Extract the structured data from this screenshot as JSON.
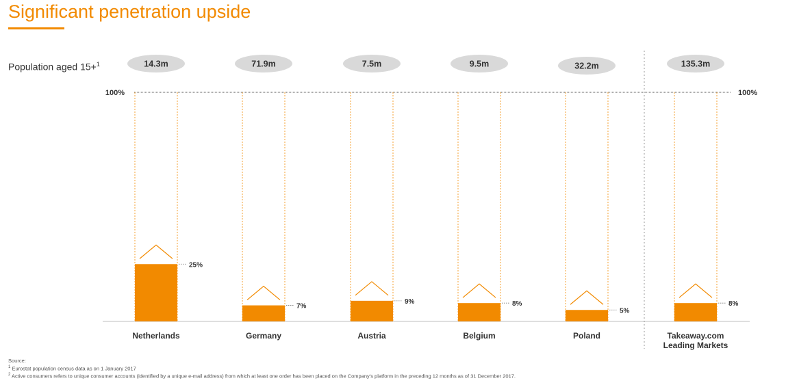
{
  "title": "Significant penetration upside",
  "population_label": "Population aged 15+",
  "population_label_sup": "1",
  "colors": {
    "accent": "#F28A00",
    "pill": "#D9D9D9",
    "axis": "#BFBFBF",
    "text": "#333333"
  },
  "chart_data": {
    "type": "bar",
    "categories": [
      "Netherlands",
      "Germany",
      "Austria",
      "Belgium",
      "Poland",
      "Takeaway.com Leading Markets"
    ],
    "category_lines": [
      [
        "Netherlands"
      ],
      [
        "Germany"
      ],
      [
        "Austria"
      ],
      [
        "Belgium"
      ],
      [
        "Poland"
      ],
      [
        "Takeaway.com",
        "Leading Markets"
      ]
    ],
    "values": [
      25,
      7,
      9,
      8,
      5,
      8
    ],
    "value_labels": [
      "25%",
      "7%",
      "9%",
      "8%",
      "5%",
      "8%"
    ],
    "population": [
      "14.3m",
      "71.9m",
      "7.5m",
      "9.5m",
      "32.2m",
      "135.3m"
    ],
    "ylim": [
      0,
      100
    ],
    "top_label": "100%"
  },
  "footer": {
    "source": "Source:",
    "note1_sup": "1",
    "note1": "Eurostat population census data as on 1 January 2017",
    "note2_sup": "2",
    "note2": "Active consumers refers to unique consumer accounts (identified by a unique e-mail address) from which at least one order has been placed on the Company's platform in the preceding 12 months as of 31 December 2017."
  }
}
